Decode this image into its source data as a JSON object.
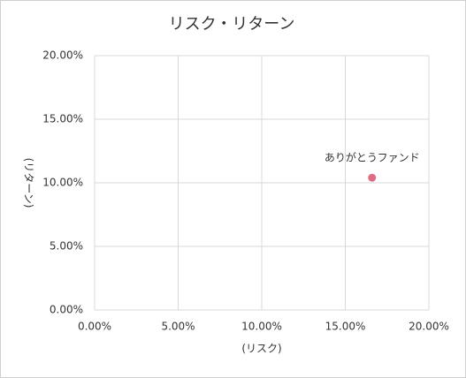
{
  "chart_data": {
    "type": "scatter",
    "title": "リスク・リターン",
    "x_label": "(リスク)",
    "y_label": "(リターン)",
    "series": [
      {
        "name": "ありがとうファンド",
        "color": "#e06c84",
        "x": [
          16.6
        ],
        "values": [
          10.4
        ]
      }
    ],
    "xlim": [
      0,
      20
    ],
    "ylim": [
      0,
      20
    ],
    "xticks": [
      {
        "value": 0,
        "label": "0.00%"
      },
      {
        "value": 5,
        "label": "5.00%"
      },
      {
        "value": 10,
        "label": "10.00%"
      },
      {
        "value": 15,
        "label": "15.00%"
      },
      {
        "value": 20,
        "label": "20.00%"
      }
    ],
    "yticks": [
      {
        "value": 0,
        "label": "0.00%"
      },
      {
        "value": 5,
        "label": "5.00%"
      },
      {
        "value": 10,
        "label": "10.00%"
      },
      {
        "value": 15,
        "label": "15.00%"
      },
      {
        "value": 20,
        "label": "20.00%"
      }
    ],
    "grid": true
  }
}
